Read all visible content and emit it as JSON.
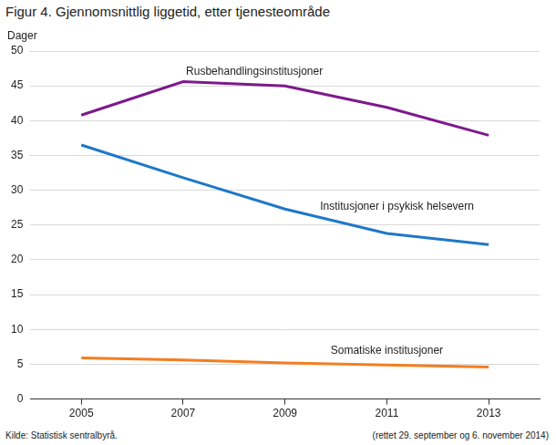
{
  "chart_data": {
    "type": "line",
    "title": "Figur 4. Gjennomsnittlig liggetid, etter tjenesteområde",
    "y_label": "Dager",
    "categories": [
      "2005",
      "2007",
      "2009",
      "2011",
      "2013"
    ],
    "series": [
      {
        "name": "Rusbehandlingsinstitusjoner",
        "color": "#7d1a8c",
        "values": [
          40.8,
          45.6,
          45.0,
          41.9,
          37.9
        ]
      },
      {
        "name": "Institusjoner i psykisk helsevern",
        "color": "#1f78c8",
        "values": [
          36.5,
          31.8,
          27.3,
          23.8,
          22.2
        ]
      },
      {
        "name": "Somatiske institusjoner",
        "color": "#f57d20",
        "values": [
          5.9,
          5.6,
          5.2,
          4.9,
          4.6
        ]
      }
    ],
    "ylim": [
      0,
      50
    ],
    "yticks": [
      0,
      5,
      10,
      15,
      20,
      25,
      30,
      35,
      40,
      45,
      50
    ],
    "grid": true,
    "source": "Kilde: Statistisk sentralbyrå.",
    "note": "(rettet 29. september og 6. november 2014)"
  }
}
